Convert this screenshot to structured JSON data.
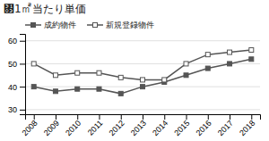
{
  "chart_data": {
    "type": "line",
    "title": "㄃1㎡当たり単価",
    "x": [
      2008,
      2009,
      2010,
      2011,
      2012,
      2013,
      2014,
      2015,
      2016,
      2017,
      2018
    ],
    "series": [
      {
        "name": "成約物件",
        "color": "#555555",
        "marker": "square",
        "values": [
          40,
          38,
          39,
          39,
          37,
          40,
          42,
          45,
          48,
          50,
          52
        ]
      },
      {
        "name": "新規登録物件",
        "color": "#555555",
        "marker": "open-square",
        "values": [
          50,
          45,
          46,
          46,
          44,
          43,
          43,
          50,
          54,
          55,
          56
        ]
      }
    ],
    "xlim": [
      2007.6,
      2018.4
    ],
    "xticks": [
      2008,
      2009,
      2010,
      2011,
      2012,
      2013,
      2014,
      2015,
      2016,
      2017,
      2018
    ],
    "ylim": [
      28,
      63
    ],
    "yticks": [
      30,
      40,
      50,
      60
    ],
    "grid": true,
    "legend": "top"
  }
}
